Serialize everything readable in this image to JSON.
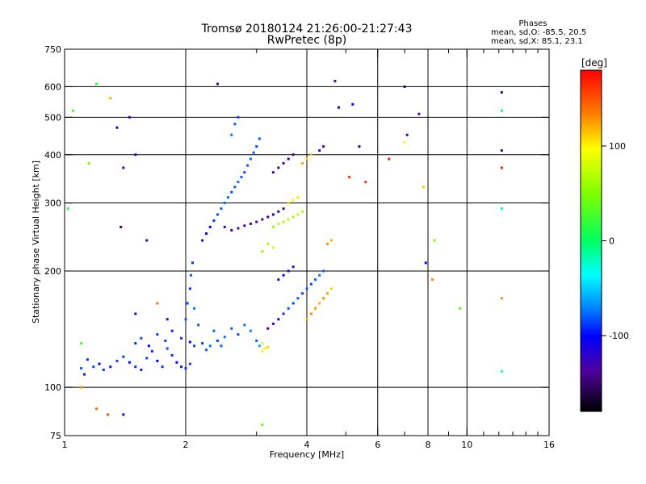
{
  "chart_data": {
    "type": "scatter",
    "title": "Tromsø 20180124 21:26:00-21:27:43",
    "subtitle": "RwPretec (8p)",
    "legend_title": "Phases",
    "stats": [
      "mean, sd,O: -85.5, 20.5",
      "mean, sd,X:  85.1, 23.1"
    ],
    "xlabel": "Frequency [MHz]",
    "ylabel": "Stationary phase Virtual Height [km]",
    "x_scale": "log",
    "y_scale": "log",
    "xlim": [
      1,
      16
    ],
    "ylim": [
      75,
      750
    ],
    "x_ticks": [
      "1",
      "2",
      "4",
      "6",
      "8",
      "10",
      "16"
    ],
    "x_tick_values": [
      1,
      2,
      4,
      6,
      8,
      10,
      16
    ],
    "x_minor_tick_values": [
      3,
      5,
      7,
      9,
      11,
      12,
      13,
      14,
      15
    ],
    "y_ticks": [
      "75",
      "100",
      "200",
      "300",
      "400",
      "500",
      "600",
      "750"
    ],
    "y_tick_values": [
      75,
      100,
      200,
      300,
      400,
      500,
      600,
      750
    ],
    "grid_x": [
      2,
      4,
      6,
      8,
      10
    ],
    "grid_y": [
      100,
      200,
      300,
      400,
      500,
      600
    ],
    "colorbar": {
      "label": "[deg]",
      "range": [
        -180,
        180
      ],
      "ticks": [
        "100",
        "0",
        "-100"
      ],
      "tick_values": [
        100,
        0,
        -100
      ]
    },
    "points": [
      [
        1.1,
        112,
        -80
      ],
      [
        1.12,
        108,
        -95
      ],
      [
        1.14,
        118,
        -90
      ],
      [
        1.18,
        113,
        -85
      ],
      [
        1.22,
        115,
        -100
      ],
      [
        1.25,
        111,
        -90
      ],
      [
        1.3,
        113,
        -95
      ],
      [
        1.35,
        117,
        -85
      ],
      [
        1.4,
        120,
        -90
      ],
      [
        1.45,
        116,
        -100
      ],
      [
        1.5,
        113,
        -90
      ],
      [
        1.55,
        111,
        -95
      ],
      [
        1.6,
        119,
        -85
      ],
      [
        1.65,
        124,
        -90
      ],
      [
        1.7,
        117,
        -100
      ],
      [
        1.75,
        113,
        -90
      ],
      [
        1.8,
        126,
        -85
      ],
      [
        1.85,
        121,
        -90
      ],
      [
        1.9,
        116,
        -100
      ],
      [
        1.95,
        113,
        -95
      ],
      [
        2.0,
        112,
        -90
      ],
      [
        2.05,
        115,
        -85
      ],
      [
        1.5,
        130,
        -90
      ],
      [
        1.55,
        134,
        -85
      ],
      [
        1.62,
        128,
        -100
      ],
      [
        1.7,
        137,
        -90
      ],
      [
        1.78,
        132,
        -85
      ],
      [
        1.85,
        140,
        -95
      ],
      [
        1.95,
        134,
        -90
      ],
      [
        2.05,
        131,
        -100
      ],
      [
        2.1,
        128,
        -85
      ],
      [
        2.0,
        150,
        -80
      ],
      [
        2.02,
        165,
        -85
      ],
      [
        2.05,
        180,
        -90
      ],
      [
        2.06,
        195,
        -80
      ],
      [
        2.08,
        210,
        -90
      ],
      [
        2.1,
        160,
        -75
      ],
      [
        2.15,
        145,
        -80
      ],
      [
        2.2,
        130,
        -85
      ],
      [
        2.25,
        125,
        -80
      ],
      [
        2.3,
        128,
        -75
      ],
      [
        2.35,
        140,
        -80
      ],
      [
        2.4,
        132,
        -85
      ],
      [
        2.45,
        128,
        -80
      ],
      [
        2.5,
        135,
        -75
      ],
      [
        2.6,
        142,
        -80
      ],
      [
        2.7,
        137,
        -85
      ],
      [
        2.8,
        145,
        -75
      ],
      [
        2.9,
        140,
        -70
      ],
      [
        3.0,
        132,
        -80
      ],
      [
        3.05,
        128,
        -60
      ],
      [
        3.1,
        124,
        90
      ],
      [
        3.15,
        126,
        100
      ],
      [
        3.2,
        142,
        -130
      ],
      [
        3.3,
        146,
        -135
      ],
      [
        3.4,
        150,
        -110
      ],
      [
        3.5,
        155,
        -90
      ],
      [
        3.6,
        160,
        -80
      ],
      [
        3.7,
        165,
        -85
      ],
      [
        3.8,
        170,
        -80
      ],
      [
        3.9,
        175,
        -85
      ],
      [
        4.0,
        180,
        -80
      ],
      [
        4.1,
        185,
        -85
      ],
      [
        4.2,
        190,
        -80
      ],
      [
        4.3,
        195,
        -75
      ],
      [
        4.4,
        200,
        -80
      ],
      [
        4.0,
        150,
        120
      ],
      [
        4.1,
        155,
        130
      ],
      [
        4.2,
        160,
        125
      ],
      [
        4.3,
        165,
        120
      ],
      [
        4.4,
        170,
        130
      ],
      [
        4.5,
        175,
        125
      ],
      [
        4.6,
        180,
        110
      ],
      [
        3.1,
        130,
        90
      ],
      [
        3.2,
        127,
        110
      ],
      [
        2.2,
        240,
        -120
      ],
      [
        2.25,
        250,
        -110
      ],
      [
        2.3,
        260,
        -100
      ],
      [
        2.35,
        270,
        -90
      ],
      [
        2.4,
        280,
        -85
      ],
      [
        2.45,
        290,
        -80
      ],
      [
        2.5,
        300,
        -75
      ],
      [
        2.55,
        310,
        -80
      ],
      [
        2.6,
        320,
        -85
      ],
      [
        2.65,
        330,
        -80
      ],
      [
        2.7,
        340,
        -75
      ],
      [
        2.75,
        350,
        -80
      ],
      [
        2.8,
        360,
        -85
      ],
      [
        2.85,
        375,
        -80
      ],
      [
        2.9,
        390,
        -75
      ],
      [
        2.95,
        405,
        -80
      ],
      [
        3.0,
        420,
        -85
      ],
      [
        3.05,
        440,
        -80
      ],
      [
        2.6,
        450,
        -75
      ],
      [
        2.65,
        480,
        -80
      ],
      [
        2.7,
        500,
        -85
      ],
      [
        2.5,
        260,
        -130
      ],
      [
        2.6,
        255,
        -140
      ],
      [
        2.7,
        258,
        -135
      ],
      [
        2.8,
        262,
        -130
      ],
      [
        2.9,
        265,
        -140
      ],
      [
        3.0,
        268,
        -135
      ],
      [
        3.1,
        272,
        -130
      ],
      [
        3.2,
        276,
        -140
      ],
      [
        3.3,
        280,
        -150
      ],
      [
        3.4,
        285,
        -145
      ],
      [
        3.5,
        290,
        -140
      ],
      [
        3.3,
        260,
        60
      ],
      [
        3.4,
        265,
        70
      ],
      [
        3.5,
        268,
        65
      ],
      [
        3.6,
        272,
        70
      ],
      [
        3.7,
        276,
        60
      ],
      [
        3.8,
        280,
        75
      ],
      [
        3.9,
        285,
        70
      ],
      [
        3.6,
        300,
        110
      ],
      [
        3.7,
        305,
        100
      ],
      [
        3.8,
        310,
        105
      ],
      [
        3.9,
        380,
        120
      ],
      [
        4.0,
        390,
        110
      ],
      [
        4.1,
        400,
        115
      ],
      [
        3.3,
        230,
        80
      ],
      [
        3.2,
        235,
        70
      ],
      [
        3.1,
        225,
        60
      ],
      [
        4.5,
        235,
        130
      ],
      [
        4.6,
        240,
        120
      ],
      [
        3.3,
        360,
        -130
      ],
      [
        3.4,
        370,
        -140
      ],
      [
        3.5,
        380,
        -135
      ],
      [
        3.6,
        390,
        -130
      ],
      [
        3.7,
        400,
        -140
      ],
      [
        4.3,
        410,
        -120
      ],
      [
        4.4,
        420,
        -130
      ],
      [
        3.4,
        190,
        -120
      ],
      [
        3.5,
        195,
        -110
      ],
      [
        3.6,
        200,
        -115
      ],
      [
        3.7,
        205,
        -120
      ],
      [
        2.4,
        610,
        -140
      ],
      [
        4.7,
        620,
        -140
      ],
      [
        7.0,
        600,
        -145
      ],
      [
        1.2,
        610,
        20
      ],
      [
        1.05,
        520,
        30
      ],
      [
        1.15,
        380,
        50
      ],
      [
        1.3,
        560,
        120
      ],
      [
        1.35,
        470,
        -120
      ],
      [
        1.45,
        500,
        -140
      ],
      [
        1.5,
        400,
        -130
      ],
      [
        1.4,
        370,
        -145
      ],
      [
        1.38,
        260,
        -150
      ],
      [
        1.6,
        240,
        -140
      ],
      [
        1.02,
        290,
        20
      ],
      [
        1.1,
        100,
        130
      ],
      [
        1.1,
        130,
        30
      ],
      [
        1.28,
        85,
        150
      ],
      [
        1.4,
        85,
        -110
      ],
      [
        1.5,
        155,
        -120
      ],
      [
        1.7,
        165,
        140
      ],
      [
        1.2,
        88,
        140
      ],
      [
        1.8,
        150,
        -130
      ],
      [
        6.4,
        390,
        170
      ],
      [
        7.0,
        430,
        90
      ],
      [
        7.1,
        450,
        -140
      ],
      [
        7.6,
        510,
        -140
      ],
      [
        7.8,
        330,
        110
      ],
      [
        7.9,
        210,
        -100
      ],
      [
        8.2,
        190,
        130
      ],
      [
        8.3,
        240,
        50
      ],
      [
        9.6,
        160,
        40
      ],
      [
        12.2,
        580,
        -140
      ],
      [
        12.2,
        520,
        -10
      ],
      [
        12.2,
        410,
        -150
      ],
      [
        12.2,
        370,
        170
      ],
      [
        12.2,
        290,
        -40
      ],
      [
        12.2,
        110,
        -30
      ],
      [
        12.2,
        170,
        130
      ],
      [
        4.8,
        530,
        -120
      ],
      [
        5.2,
        540,
        -100
      ],
      [
        5.4,
        420,
        -120
      ],
      [
        5.6,
        340,
        160
      ],
      [
        5.1,
        350,
        160
      ],
      [
        3.1,
        80,
        50
      ]
    ]
  }
}
